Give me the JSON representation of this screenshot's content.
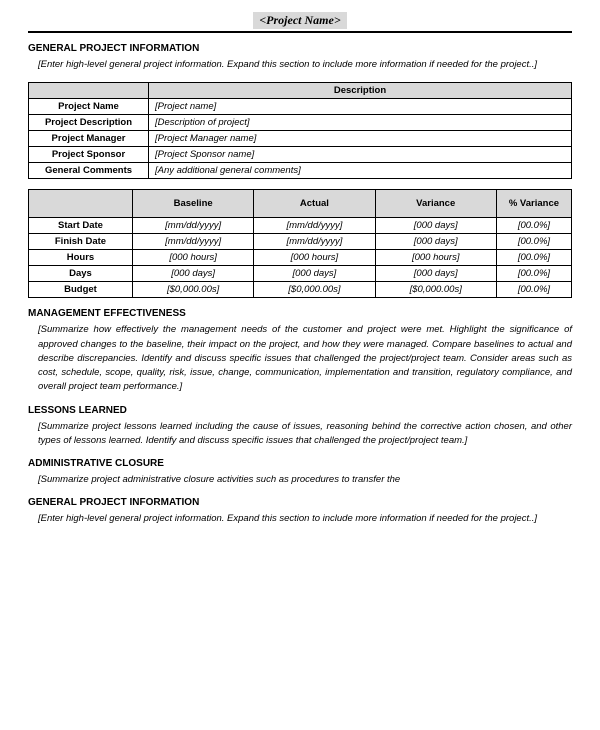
{
  "title": "<Project Name>",
  "sections": {
    "general1": {
      "heading": "GENERAL PROJECT INFORMATION",
      "body": "[Enter high-level general project information. Expand this section to include more information if needed for the project..]"
    },
    "mgmt": {
      "heading": "MANAGEMENT EFFECTIVENESS",
      "body": "[Summarize how effectively the management needs of the customer and project were met. Highlight the significance of approved changes to the baseline, their impact on the project, and how they were managed. Compare baselines to actual and describe discrepancies. Identify and discuss specific issues that challenged the project/project team. Consider areas such as cost, schedule, scope, quality, risk, issue, change, communication, implementation and transition, regulatory compliance, and overall project team performance.]"
    },
    "lessons": {
      "heading": "LESSONS LEARNED",
      "body": "[Summarize project lessons learned including the cause of issues, reasoning behind the corrective action chosen, and other types of lessons learned. Identify and discuss specific issues that challenged the project/project team.]"
    },
    "admin": {
      "heading": "ADMINISTRATIVE CLOSURE",
      "body": "[Summarize project administrative closure activities such as procedures to transfer the"
    },
    "general2": {
      "heading": "GENERAL PROJECT INFORMATION",
      "body": "[Enter high-level general project information. Expand this section to include more information if needed for the project..]"
    }
  },
  "infoTable": {
    "descHeader": "Description",
    "rows": [
      {
        "label": "Project Name",
        "value": "[Project name]"
      },
      {
        "label": "Project Description",
        "value": "[Description of project]"
      },
      {
        "label": "Project Manager",
        "value": "[Project Manager name]"
      },
      {
        "label": "Project Sponsor",
        "value": "[Project Sponsor name]"
      },
      {
        "label": "General Comments",
        "value": "[Any additional general comments]"
      }
    ]
  },
  "metricsTable": {
    "headers": [
      "",
      "Baseline",
      "Actual",
      "Variance",
      "% Variance"
    ],
    "rows": [
      {
        "label": "Start Date",
        "baseline": "[mm/dd/yyyy]",
        "actual": "[mm/dd/yyyy]",
        "variance": "[000 days]",
        "pct": "[00.0%]"
      },
      {
        "label": "Finish Date",
        "baseline": "[mm/dd/yyyy]",
        "actual": "[mm/dd/yyyy]",
        "variance": "[000 days]",
        "pct": "[00.0%]"
      },
      {
        "label": "Hours",
        "baseline": "[000 hours]",
        "actual": "[000 hours]",
        "variance": "[000 hours]",
        "pct": "[00.0%]"
      },
      {
        "label": "Days",
        "baseline": "[000 days]",
        "actual": "[000 days]",
        "variance": "[000 days]",
        "pct": "[00.0%]"
      },
      {
        "label": "Budget",
        "baseline": "[$0,000.00s]",
        "actual": "[$0,000.00s]",
        "variance": "[$0,000.00s]",
        "pct": "[00.0%]"
      }
    ]
  }
}
